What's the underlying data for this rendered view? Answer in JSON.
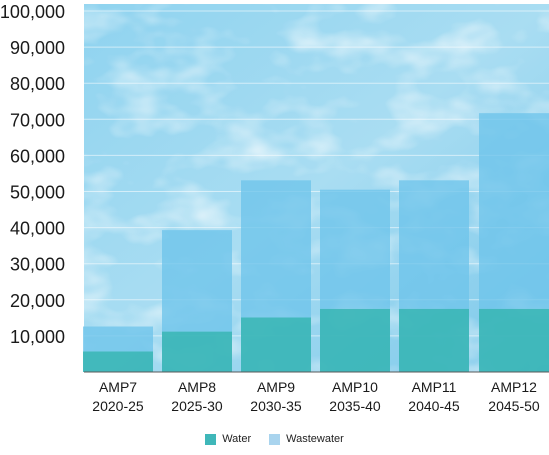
{
  "chart_data": {
    "type": "bar",
    "stacked": true,
    "categories": [
      [
        "AMP7",
        "2020-25"
      ],
      [
        "AMP8",
        "2025-30"
      ],
      [
        "AMP9",
        "2030-35"
      ],
      [
        "AMP10",
        "2035-40"
      ],
      [
        "AMP11",
        "2040-45"
      ],
      [
        "AMP12",
        "2045-50"
      ]
    ],
    "series": [
      {
        "name": "Water",
        "color": "#3fb7b9",
        "values": [
          5700,
          11200,
          15100,
          17500,
          17500,
          17500
        ]
      },
      {
        "name": "Wastewater",
        "color": "#6cc3e8",
        "values": [
          6900,
          28100,
          38000,
          33000,
          35600,
          54200
        ]
      }
    ],
    "ylim": [
      0,
      100000
    ],
    "yticks": [
      10000,
      20000,
      30000,
      40000,
      50000,
      60000,
      70000,
      80000,
      90000,
      100000
    ],
    "ytick_labels": [
      "10,000",
      "20,000",
      "30,000",
      "40,000",
      "50,000",
      "60,000",
      "70,000",
      "80,000",
      "90,000",
      "100,000"
    ],
    "grid": true,
    "legend_position": "bottom-center",
    "background": "light-blue-water-texture"
  }
}
